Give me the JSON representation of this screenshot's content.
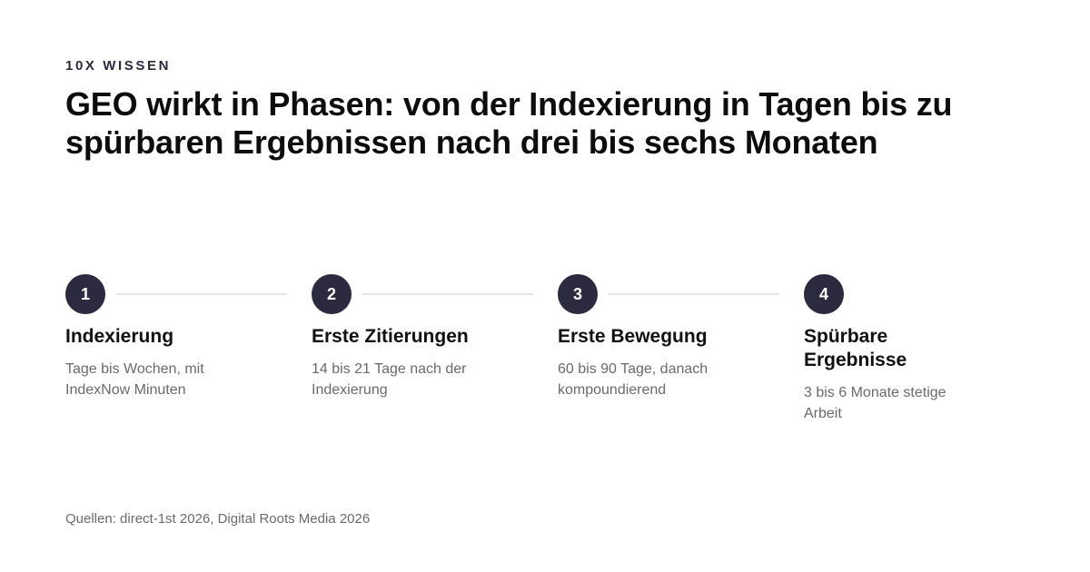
{
  "eyebrow": "10X WISSEN",
  "title": "GEO wirkt in Phasen: von der Indexierung in Tagen bis zu spürbaren Ergebnissen nach drei bis sechs Monaten",
  "colors": {
    "badge_bg": "#2b2a3f",
    "connector": "#e6e6ea",
    "text_muted": "#6a6a6a"
  },
  "steps": [
    {
      "number": "1",
      "title": "Indexierung",
      "description": "Tage bis Wochen, mit IndexNow Minuten"
    },
    {
      "number": "2",
      "title": "Erste Zitierungen",
      "description": "14 bis 21 Tage nach der Indexierung"
    },
    {
      "number": "3",
      "title": "Erste Bewegung",
      "description": "60 bis 90 Tage, danach kompoundierend"
    },
    {
      "number": "4",
      "title": "Spürbare Ergebnisse",
      "description": "3 bis 6 Monate stetige Arbeit"
    }
  ],
  "sources": "Quellen: direct-1st 2026, Digital Roots Media 2026"
}
